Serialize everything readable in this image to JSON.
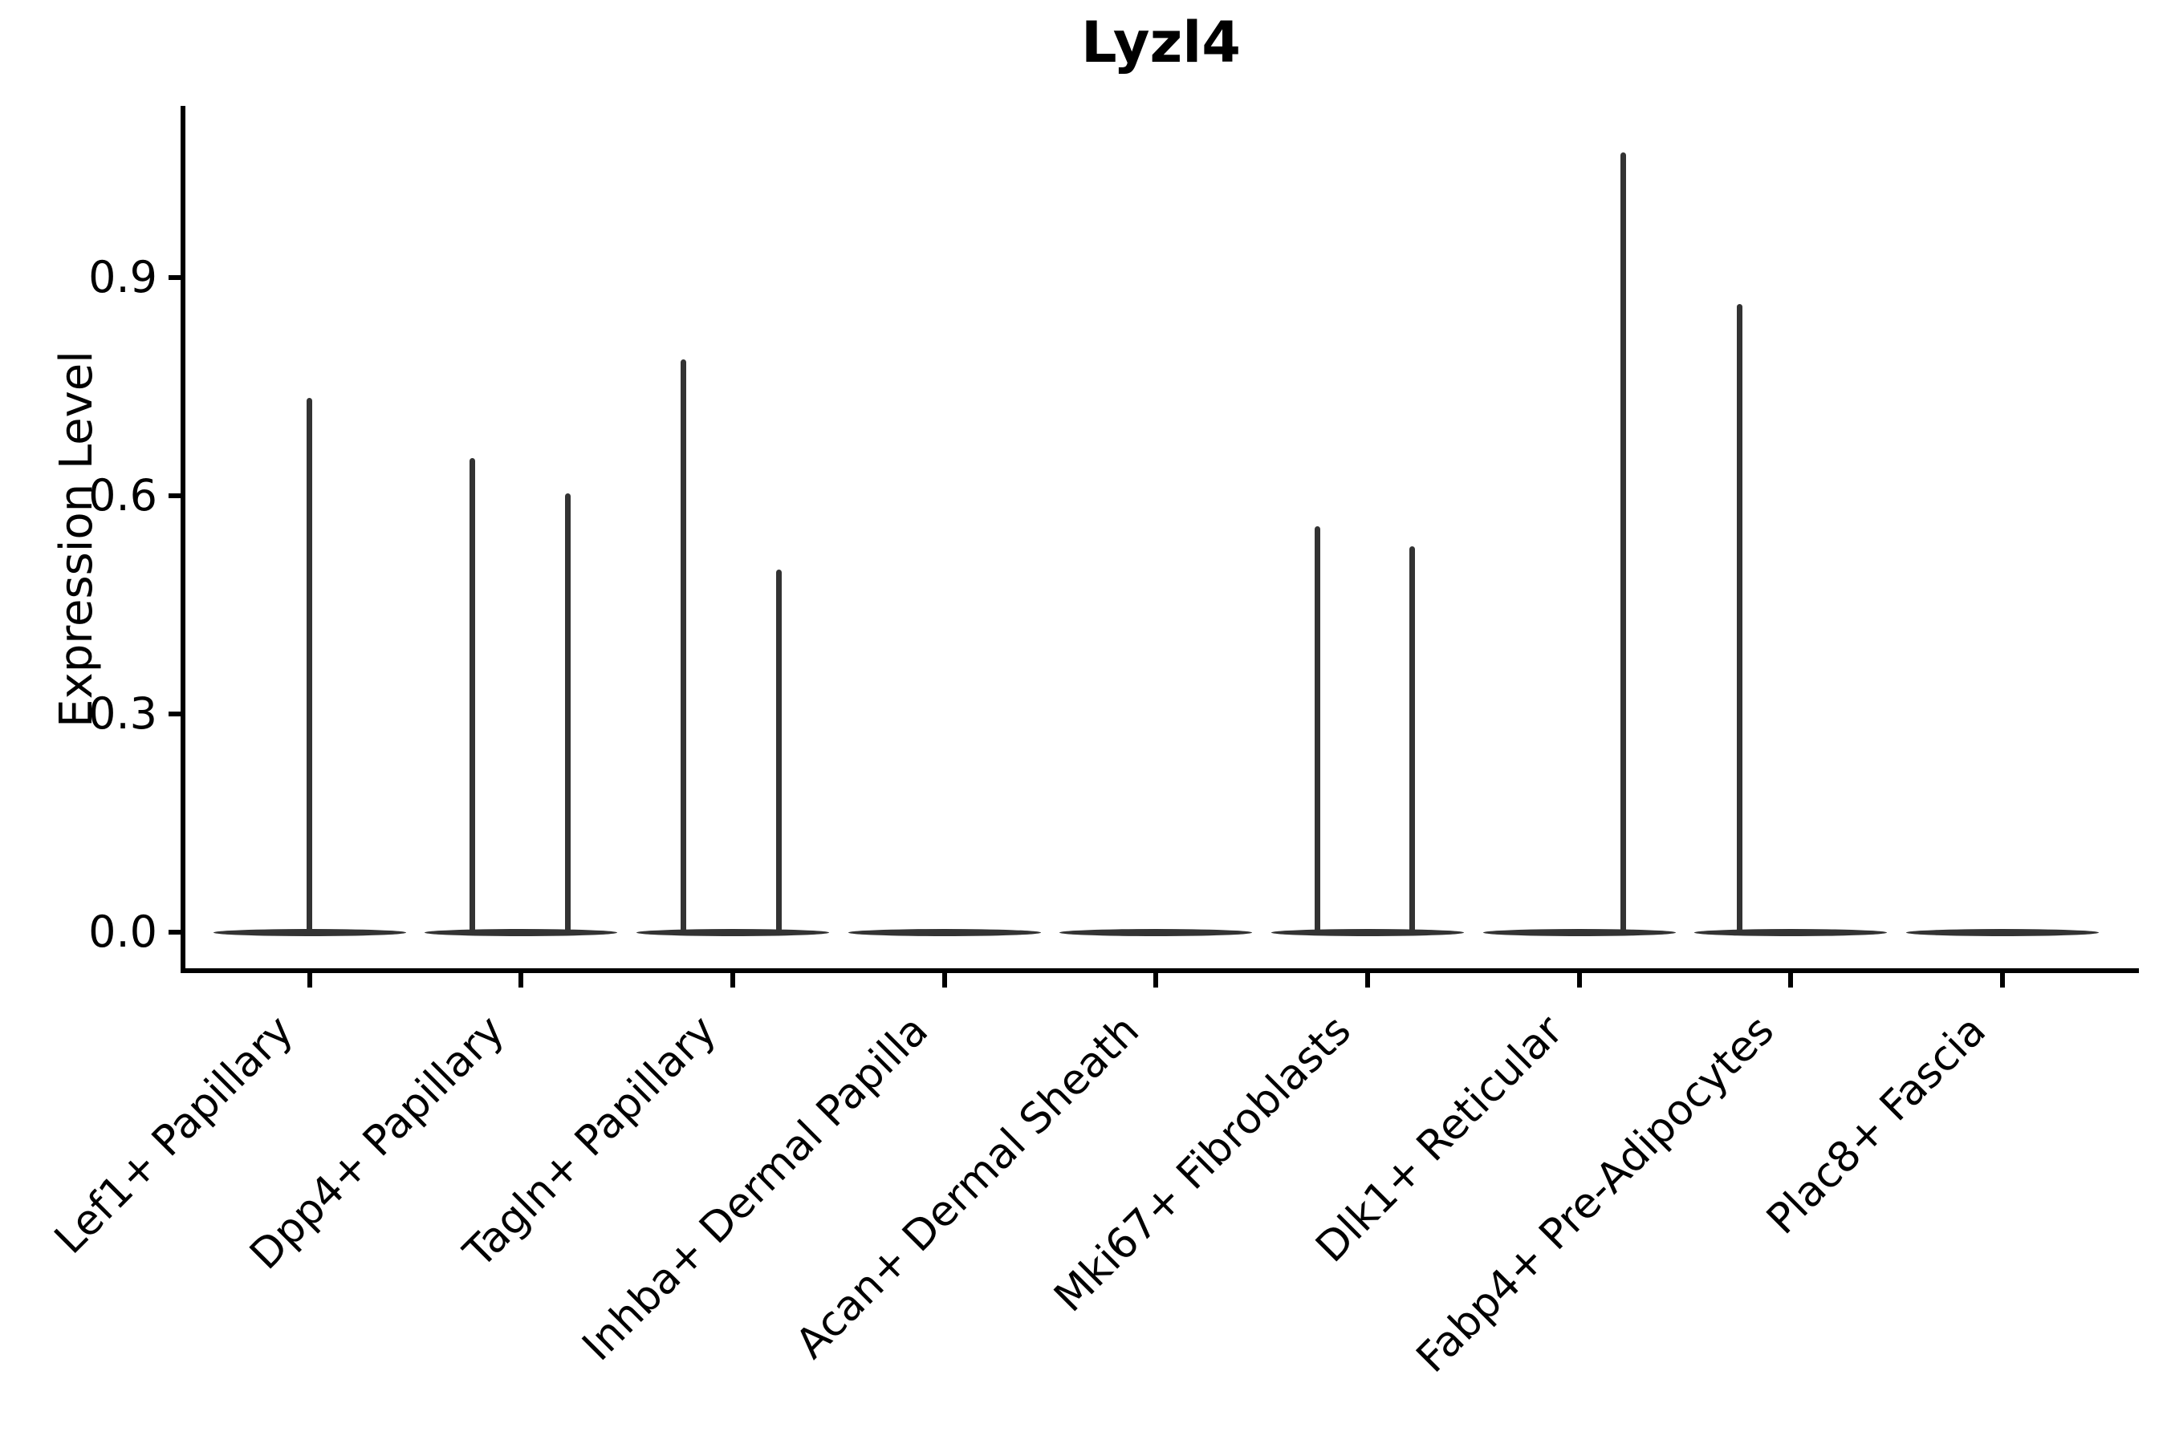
{
  "chart_data": {
    "type": "violin",
    "title": "Lyzl4",
    "xlabel": "",
    "ylabel": "Expression Level",
    "y_ticks": [
      0.0,
      0.3,
      0.6,
      0.9
    ],
    "y_tick_labels": [
      "0.0",
      "0.3",
      "0.6",
      "0.9"
    ],
    "ylim": [
      -0.053,
      1.136
    ],
    "grid": false,
    "legend": "none",
    "violin_color": "#333333",
    "axis_color": "#000000",
    "categories": [
      "Lef1+ Papillary",
      "Dpp4+ Papillary",
      "Tagln+ Papillary",
      "Inhba+ Dermal Papilla",
      "Acan+ Dermal Sheath",
      "Mki67+ Fibroblasts",
      "Dlk1+ Reticular",
      "Fabp4+ Pre-Adipocytes",
      "Plac8+ Fascia"
    ],
    "series": [
      {
        "name": "Lef1+ Papillary",
        "bulk_at_zero": true,
        "spikes": [
          {
            "dx": 0,
            "value": 0.735
          }
        ]
      },
      {
        "name": "Dpp4+ Papillary",
        "bulk_at_zero": true,
        "spikes": [
          {
            "dx": -61,
            "value": 0.652
          },
          {
            "dx": 58,
            "value": 0.603
          }
        ]
      },
      {
        "name": "Tagln+ Papillary",
        "bulk_at_zero": true,
        "spikes": [
          {
            "dx": -61,
            "value": 0.788
          },
          {
            "dx": 58,
            "value": 0.499
          }
        ]
      },
      {
        "name": "Inhba+ Dermal Papilla",
        "bulk_at_zero": true,
        "spikes": []
      },
      {
        "name": "Acan+ Dermal Sheath",
        "bulk_at_zero": true,
        "spikes": []
      },
      {
        "name": "Mki67+ Fibroblasts",
        "bulk_at_zero": true,
        "spikes": [
          {
            "dx": -63,
            "value": 0.558
          },
          {
            "dx": 55,
            "value": 0.531
          }
        ]
      },
      {
        "name": "Dlk1+ Reticular",
        "bulk_at_zero": true,
        "spikes": [
          {
            "dx": 55,
            "value": 1.072
          }
        ]
      },
      {
        "name": "Fabp4+ Pre-Adipocytes",
        "bulk_at_zero": true,
        "spikes": [
          {
            "dx": -64,
            "value": 0.864
          }
        ]
      },
      {
        "name": "Plac8+ Fascia",
        "bulk_at_zero": true,
        "spikes": []
      }
    ]
  }
}
